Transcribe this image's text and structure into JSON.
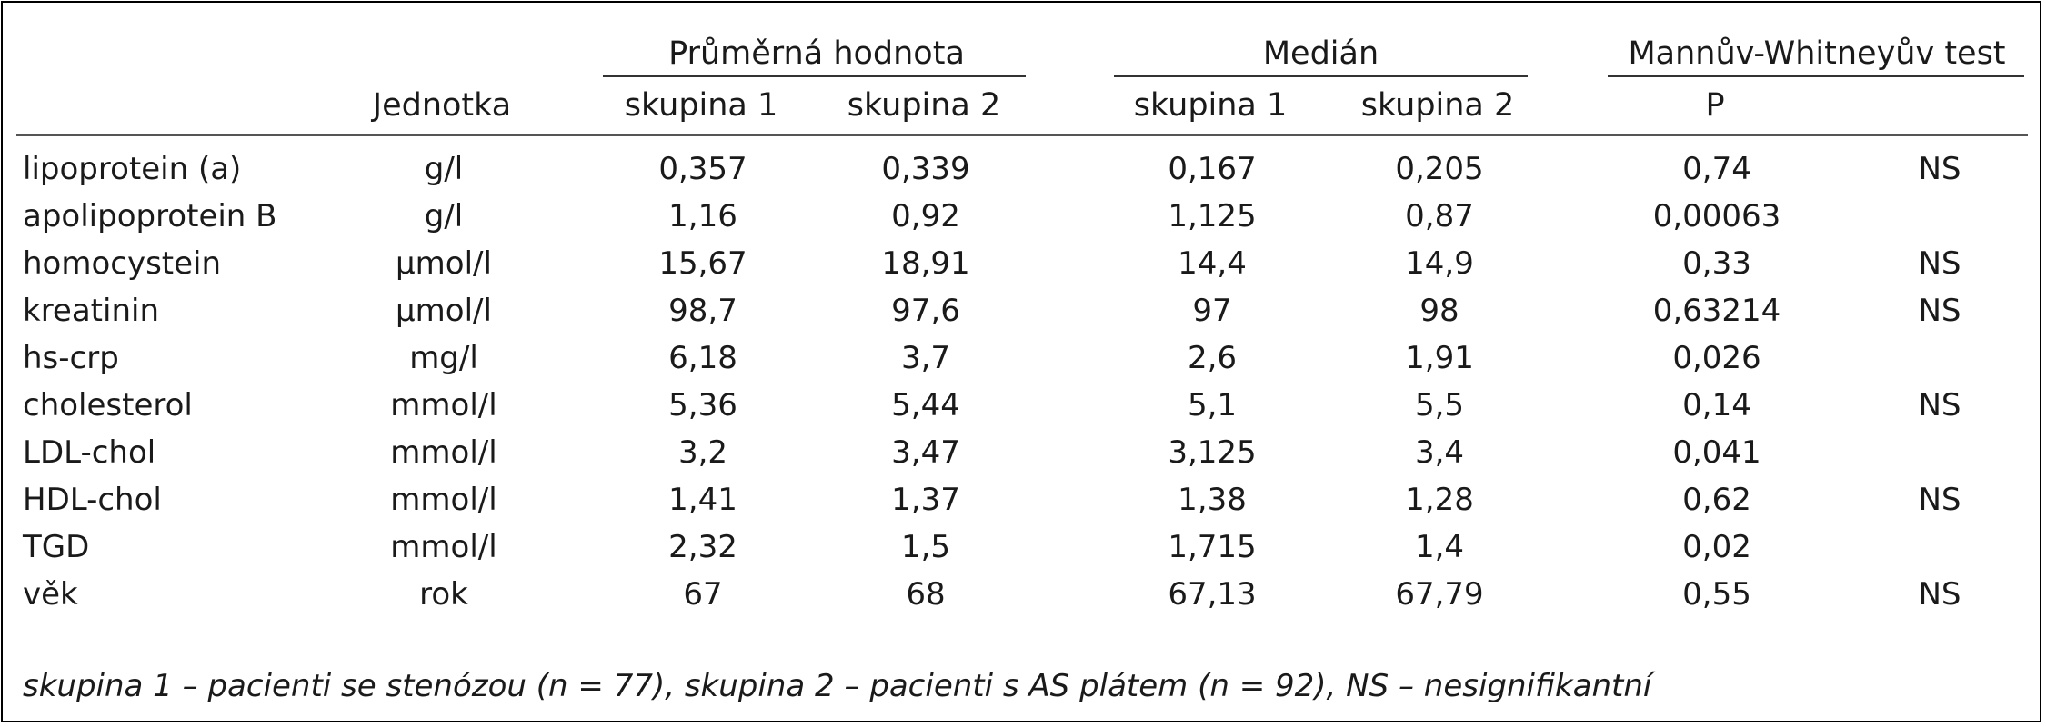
{
  "table": {
    "group_headers": {
      "mean": "Průměrná hodnota",
      "median": "Medián",
      "test": "Mannův-Whitneyův test"
    },
    "column_headers": {
      "unit": "Jednotka",
      "mean_g1": "skupina 1",
      "mean_g2": "skupina 2",
      "median_g1": "skupina 1",
      "median_g2": "skupina 2",
      "p": "P"
    },
    "rows": [
      {
        "name": "lipoprotein (a)",
        "unit": "g/l",
        "mean_g1": "0,357",
        "mean_g2": "0,339",
        "median_g1": "0,167",
        "median_g2": "0,205",
        "p": "0,74",
        "sig": "NS"
      },
      {
        "name": "apolipoprotein B",
        "unit": "g/l",
        "mean_g1": "1,16",
        "mean_g2": "0,92",
        "median_g1": "1,125",
        "median_g2": "0,87",
        "p": "0,00063",
        "sig": ""
      },
      {
        "name": "homocystein",
        "unit": "μmol/l",
        "mean_g1": "15,67",
        "mean_g2": "18,91",
        "median_g1": "14,4",
        "median_g2": "14,9",
        "p": "0,33",
        "sig": "NS"
      },
      {
        "name": "kreatinin",
        "unit": "μmol/l",
        "mean_g1": "98,7",
        "mean_g2": "97,6",
        "median_g1": "97",
        "median_g2": "98",
        "p": "0,63214",
        "sig": "NS"
      },
      {
        "name": "hs-crp",
        "unit": "mg/l",
        "mean_g1": "6,18",
        "mean_g2": "3,7",
        "median_g1": "2,6",
        "median_g2": "1,91",
        "p": "0,026",
        "sig": ""
      },
      {
        "name": "cholesterol",
        "unit": "mmol/l",
        "mean_g1": "5,36",
        "mean_g2": "5,44",
        "median_g1": "5,1",
        "median_g2": "5,5",
        "p": "0,14",
        "sig": "NS"
      },
      {
        "name": "LDL-chol",
        "unit": "mmol/l",
        "mean_g1": "3,2",
        "mean_g2": "3,47",
        "median_g1": "3,125",
        "median_g2": "3,4",
        "p": "0,041",
        "sig": ""
      },
      {
        "name": "HDL-chol",
        "unit": "mmol/l",
        "mean_g1": "1,41",
        "mean_g2": "1,37",
        "median_g1": "1,38",
        "median_g2": "1,28",
        "p": "0,62",
        "sig": "NS"
      },
      {
        "name": "TGD",
        "unit": "mmol/l",
        "mean_g1": "2,32",
        "mean_g2": "1,5",
        "median_g1": "1,715",
        "median_g2": "1,4",
        "p": "0,02",
        "sig": ""
      },
      {
        "name": "věk",
        "unit": "rok",
        "mean_g1": "67",
        "mean_g2": "68",
        "median_g1": "67,13",
        "median_g2": "67,79",
        "p": "0,55",
        "sig": "NS"
      }
    ]
  },
  "footnote": "skupina 1 – pacienti se stenózou (n = 77), skupina 2 – pacienti s AS plátem (n = 92), NS – nesignifikantní"
}
